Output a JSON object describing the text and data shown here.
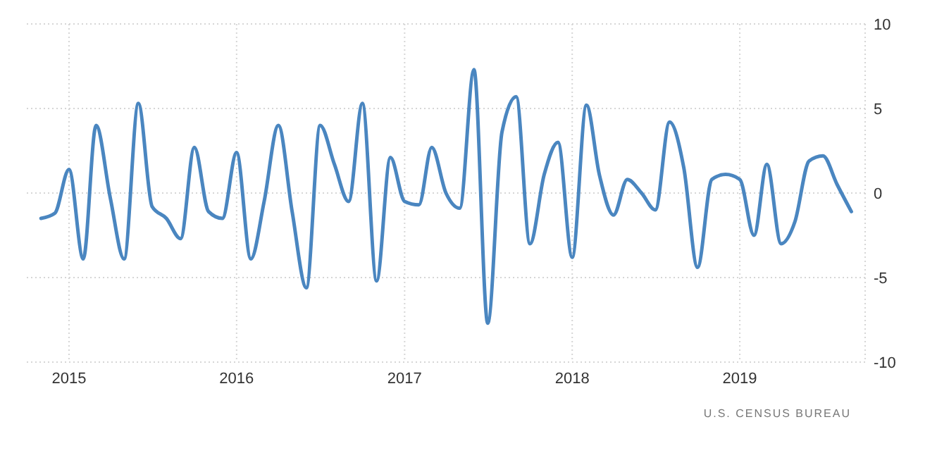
{
  "chart_data": {
    "type": "line",
    "x": [
      "2014-11",
      "2014-12",
      "2015-01",
      "2015-02",
      "2015-03",
      "2015-04",
      "2015-05",
      "2015-06",
      "2015-07",
      "2015-08",
      "2015-09",
      "2015-10",
      "2015-11",
      "2015-12",
      "2016-01",
      "2016-02",
      "2016-03",
      "2016-04",
      "2016-05",
      "2016-06",
      "2016-07",
      "2016-08",
      "2016-09",
      "2016-10",
      "2016-11",
      "2016-12",
      "2017-01",
      "2017-02",
      "2017-03",
      "2017-04",
      "2017-05",
      "2017-06",
      "2017-07",
      "2017-08",
      "2017-09",
      "2017-10",
      "2017-11",
      "2017-12",
      "2018-01",
      "2018-02",
      "2018-03",
      "2018-04",
      "2018-05",
      "2018-06",
      "2018-07",
      "2018-08",
      "2018-09",
      "2018-10",
      "2018-11",
      "2018-12",
      "2019-01",
      "2019-02",
      "2019-03",
      "2019-04",
      "2019-05",
      "2019-06",
      "2019-07",
      "2019-08",
      "2019-09"
    ],
    "series": [
      {
        "color": "#4a86c0",
        "values": [
          -1.5,
          -1.2,
          1.4,
          -3.9,
          4.0,
          -0.3,
          -3.9,
          5.3,
          -0.8,
          -1.5,
          -2.7,
          2.7,
          -1.1,
          -1.5,
          2.4,
          -3.9,
          -0.5,
          4.0,
          -1.1,
          -5.6,
          4.0,
          1.7,
          -0.5,
          5.3,
          -5.2,
          2.1,
          -0.5,
          -0.7,
          2.7,
          0.0,
          -0.9,
          7.3,
          -7.7,
          3.6,
          5.7,
          -3.0,
          1.1,
          3.0,
          -3.8,
          5.2,
          1.1,
          -1.3,
          0.8,
          0.0,
          -1.0,
          4.2,
          1.5,
          -4.4,
          0.8,
          1.1,
          0.8,
          -2.5,
          1.7,
          -3.0,
          -1.7,
          1.9,
          2.2,
          0.5,
          -1.1
        ]
      }
    ],
    "xlim": [
      "2014-10",
      "2019-10"
    ],
    "xticks": [
      {
        "value": "2015-01",
        "label": "2015"
      },
      {
        "value": "2016-01",
        "label": "2016"
      },
      {
        "value": "2017-01",
        "label": "2017"
      },
      {
        "value": "2018-01",
        "label": "2018"
      },
      {
        "value": "2019-01",
        "label": "2019"
      }
    ],
    "ylim": [
      -10,
      10
    ],
    "yticks": [
      -10,
      -5,
      0,
      5,
      10
    ],
    "grid": true,
    "marker": "none",
    "line_style": "solid",
    "annotations": [
      "U.S. CENSUS BUREAU"
    ]
  }
}
